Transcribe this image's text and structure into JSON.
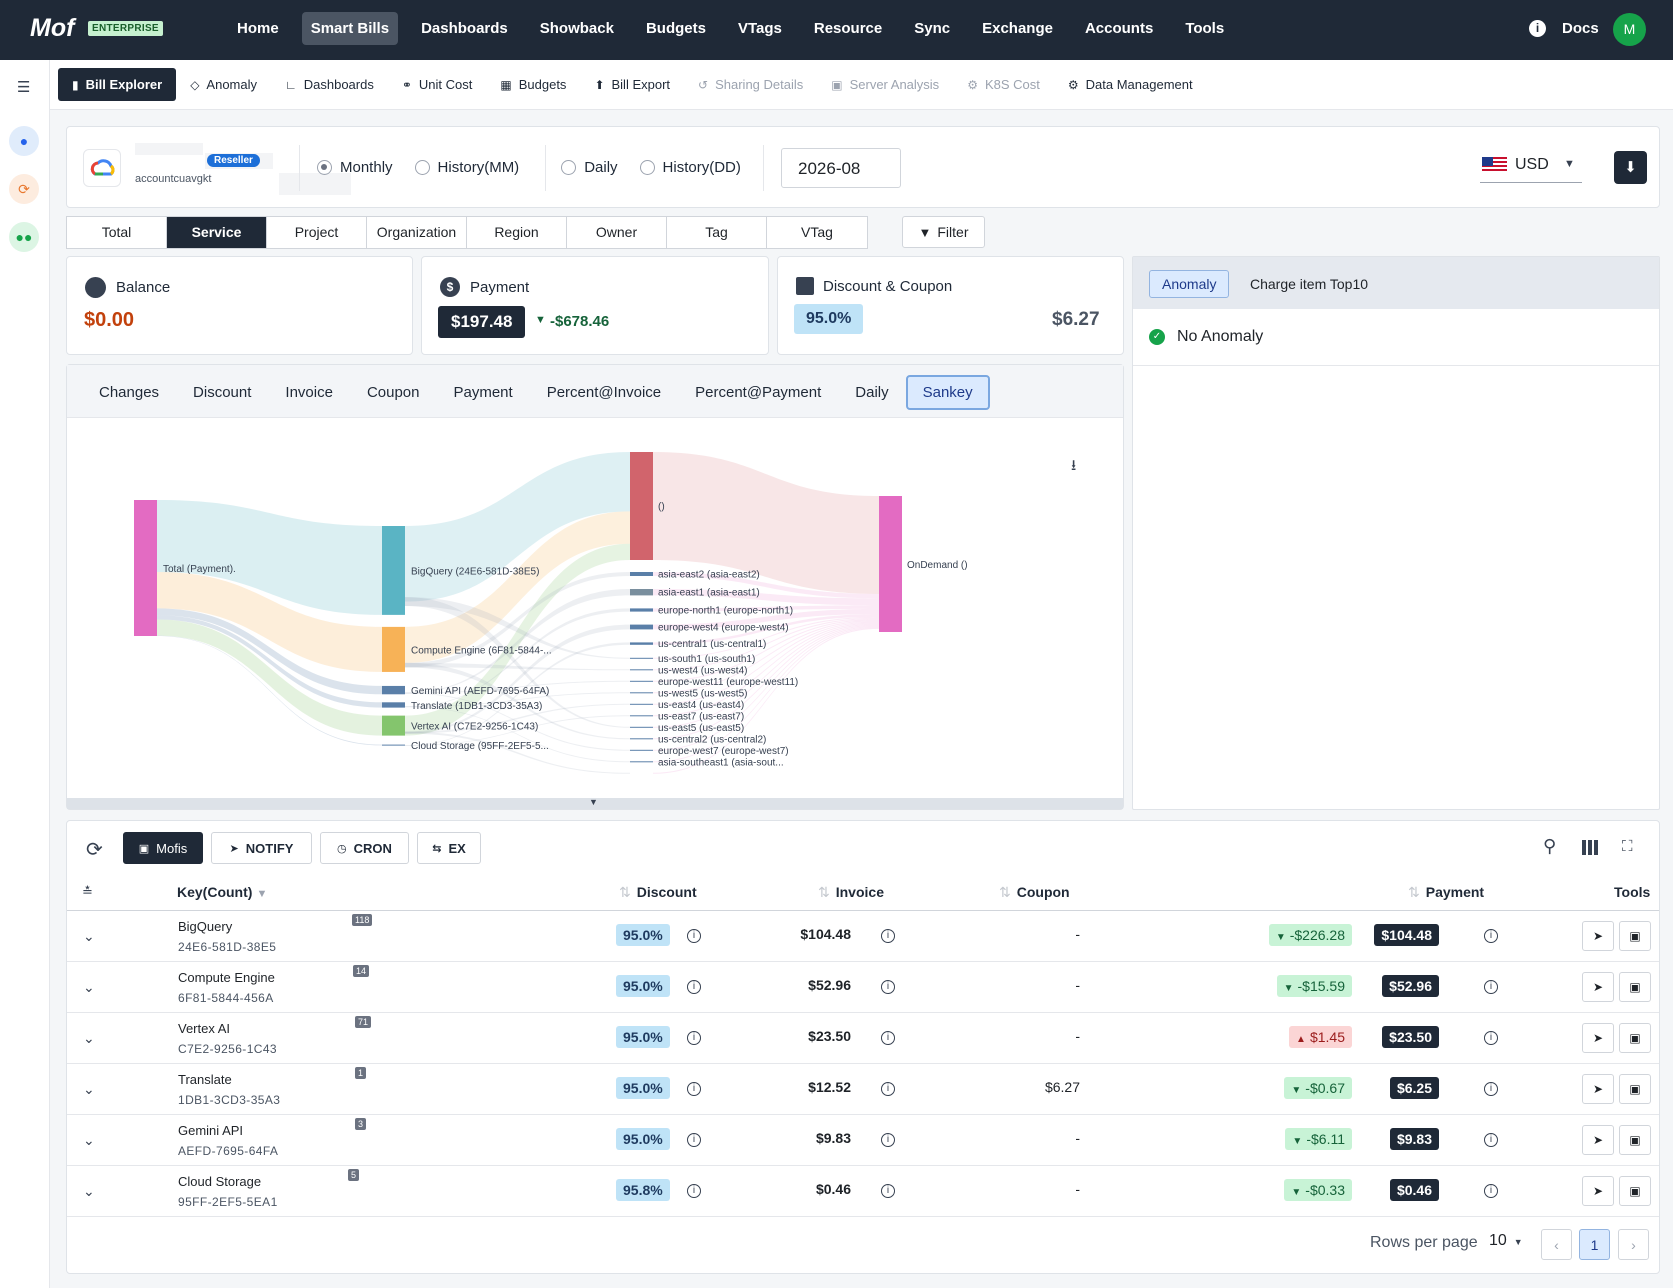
{
  "topnav": {
    "logo": "Mof",
    "badge": "ENTERPRISE",
    "items": [
      "Home",
      "Smart Bills",
      "Dashboards",
      "Showback",
      "Budgets",
      "VTags",
      "Resource",
      "Sync",
      "Exchange",
      "Accounts",
      "Tools"
    ],
    "active": "Smart Bills",
    "docs": "Docs",
    "avatar": "M"
  },
  "subnav": {
    "items": [
      {
        "label": "Bill Explorer",
        "icon": "bar-chart-icon",
        "state": "active"
      },
      {
        "label": "Anomaly",
        "icon": "diamond-icon",
        "state": "normal"
      },
      {
        "label": "Dashboards",
        "icon": "line-chart-icon",
        "state": "normal"
      },
      {
        "label": "Unit Cost",
        "icon": "unit-cost-icon",
        "state": "normal"
      },
      {
        "label": "Budgets",
        "icon": "calculator-icon",
        "state": "normal"
      },
      {
        "label": "Bill Export",
        "icon": "upload-icon",
        "state": "normal"
      },
      {
        "label": "Sharing Details",
        "icon": "share-icon",
        "state": "disabled"
      },
      {
        "label": "Server Analysis",
        "icon": "server-icon",
        "state": "disabled"
      },
      {
        "label": "K8S Cost",
        "icon": "kubernetes-icon",
        "state": "disabled"
      },
      {
        "label": "Data Management",
        "icon": "gear-icon",
        "state": "normal"
      }
    ]
  },
  "account": {
    "name": "accountcuavgkt",
    "reseller": "Reseller",
    "periods": [
      "Monthly",
      "History(MM)",
      "Daily",
      "History(DD)"
    ],
    "selected_period": "Monthly",
    "month": "2026-08",
    "currency": "USD"
  },
  "dimensions": {
    "tabs": [
      "Total",
      "Service",
      "Project",
      "Organization",
      "Region",
      "Owner",
      "Tag",
      "VTag"
    ],
    "active": "Service",
    "filter": "Filter"
  },
  "kpi": {
    "balance": {
      "title": "Balance",
      "value": "$0.00"
    },
    "payment": {
      "title": "Payment",
      "value": "$197.48",
      "change": "-$678.46"
    },
    "discount": {
      "title": "Discount & Coupon",
      "percent": "95.0%",
      "value": "$6.27"
    }
  },
  "anomaly_panel": {
    "tabs": [
      "Anomaly",
      "Charge item Top10"
    ],
    "active": "Anomaly",
    "status": "No Anomaly"
  },
  "chart_tabs": {
    "tabs": [
      "Changes",
      "Discount",
      "Invoice",
      "Coupon",
      "Payment",
      "Percent@Invoice",
      "Percent@Payment",
      "Daily",
      "Sankey"
    ],
    "active": "Sankey"
  },
  "chart_data": {
    "type": "sankey",
    "nodes": [
      {
        "name": "Total (Payment).",
        "level": 0,
        "color": "#e36bc2"
      },
      {
        "name": "BigQuery (24E6-581D-38E5)",
        "level": 1,
        "color": "#5ab4c4"
      },
      {
        "name": "Compute Engine (6F81-5844-...",
        "level": 1,
        "color": "#f7b257"
      },
      {
        "name": "Gemini API (AEFD-7695-64FA)",
        "level": 1,
        "color": "#5a7fa8"
      },
      {
        "name": "Translate (1DB1-3CD3-35A3)",
        "level": 1,
        "color": "#5a7fa8"
      },
      {
        "name": "Vertex AI (C7E2-9256-1C43)",
        "level": 1,
        "color": "#84c56d"
      },
      {
        "name": "Cloud Storage (95FF-2EF5-5...",
        "level": 1,
        "color": "#5a7fa8"
      },
      {
        "name": "()",
        "level": 2,
        "color": "#d1646c"
      },
      {
        "name": "asia-east2 (asia-east2)",
        "level": 2,
        "color": "#5a7fa8"
      },
      {
        "name": "asia-east1 (asia-east1)",
        "level": 2,
        "color": "#7a8f9e"
      },
      {
        "name": "europe-north1 (europe-north1)",
        "level": 2,
        "color": "#5a7fa8"
      },
      {
        "name": "europe-west4 (europe-west4)",
        "level": 2,
        "color": "#5a7fa8"
      },
      {
        "name": "us-central1 (us-central1)",
        "level": 2,
        "color": "#5a7fa8"
      },
      {
        "name": "us-south1 (us-south1)",
        "level": 2,
        "color": "#5a7fa8"
      },
      {
        "name": "us-west4 (us-west4)",
        "level": 2,
        "color": "#5a7fa8"
      },
      {
        "name": "europe-west11 (europe-west11)",
        "level": 2,
        "color": "#5a7fa8"
      },
      {
        "name": "us-west5 (us-west5)",
        "level": 2,
        "color": "#5a7fa8"
      },
      {
        "name": "us-east4 (us-east4)",
        "level": 2,
        "color": "#5a7fa8"
      },
      {
        "name": "us-east7 (us-east7)",
        "level": 2,
        "color": "#5a7fa8"
      },
      {
        "name": "us-east5 (us-east5)",
        "level": 2,
        "color": "#5a7fa8"
      },
      {
        "name": "us-central2 (us-central2)",
        "level": 2,
        "color": "#5a7fa8"
      },
      {
        "name": "europe-west7 (europe-west7)",
        "level": 2,
        "color": "#5a7fa8"
      },
      {
        "name": "asia-southeast1 (asia-sout...",
        "level": 2,
        "color": "#5a7fa8"
      },
      {
        "name": "OnDemand ()",
        "level": 3,
        "color": "#e36bc2"
      }
    ],
    "links_level1_values": [
      104.48,
      52.96,
      9.83,
      6.25,
      23.5,
      0.46
    ],
    "links_level2_values": [
      150.0,
      2.5,
      4.0,
      2.0,
      3.0,
      1.5,
      0.6,
      0.5,
      0.5,
      0.5,
      0.4,
      0.4,
      0.4,
      0.4,
      0.3,
      0.3,
      0.2
    ],
    "total": 197.48
  },
  "table_toolbar": {
    "buttons": [
      "Mofis",
      "NOTIFY",
      "CRON",
      "EX"
    ]
  },
  "table": {
    "headers": [
      "Key(Count)",
      "Discount",
      "Invoice",
      "Coupon",
      "Payment",
      "Tools"
    ],
    "rows": [
      {
        "name": "BigQuery",
        "id": "24E6-581D-38E5",
        "count": "118",
        "discount": "95.0%",
        "invoice": "$104.48",
        "coupon": "-",
        "change": "-$226.28",
        "dir": "down",
        "payment": "$104.48"
      },
      {
        "name": "Compute Engine",
        "id": "6F81-5844-456A",
        "count": "14",
        "discount": "95.0%",
        "invoice": "$52.96",
        "coupon": "-",
        "change": "-$15.59",
        "dir": "down",
        "payment": "$52.96"
      },
      {
        "name": "Vertex AI",
        "id": "C7E2-9256-1C43",
        "count": "71",
        "discount": "95.0%",
        "invoice": "$23.50",
        "coupon": "-",
        "change": "$1.45",
        "dir": "up",
        "payment": "$23.50"
      },
      {
        "name": "Translate",
        "id": "1DB1-3CD3-35A3",
        "count": "1",
        "discount": "95.0%",
        "invoice": "$12.52",
        "coupon": "$6.27",
        "change": "-$0.67",
        "dir": "down",
        "payment": "$6.25"
      },
      {
        "name": "Gemini API",
        "id": "AEFD-7695-64FA",
        "count": "3",
        "discount": "95.0%",
        "invoice": "$9.83",
        "coupon": "-",
        "change": "-$6.11",
        "dir": "down",
        "payment": "$9.83"
      },
      {
        "name": "Cloud Storage",
        "id": "95FF-2EF5-5EA1",
        "count": "5",
        "discount": "95.8%",
        "invoice": "$0.46",
        "coupon": "-",
        "change": "-$0.33",
        "dir": "down",
        "payment": "$0.46"
      }
    ]
  },
  "pagination": {
    "label": "Rows per page",
    "per_page": "10",
    "page": "1"
  }
}
